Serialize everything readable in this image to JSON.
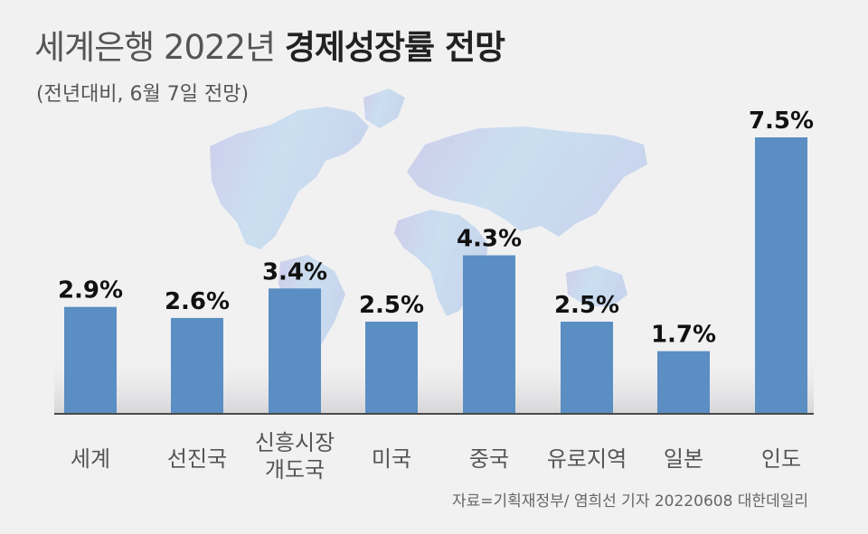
{
  "title": {
    "prefix": "세계은행 2022년",
    "emphasis": "경제성장률 전망"
  },
  "subtitle": "(전년대비, 6월 7일 전망)",
  "source": "자료=기획재정부/ 염희선 기자 20220608 대한데일리",
  "colors": {
    "bar": "#5b8ec2",
    "baseline": "#4a4a4a",
    "background": "#f1f1f2",
    "map": "#c9d6ec"
  },
  "chart_data": {
    "type": "bar",
    "categories": [
      [
        "세계"
      ],
      [
        "선진국"
      ],
      [
        "신흥시장",
        "개도국"
      ],
      [
        "미국"
      ],
      [
        "중국"
      ],
      [
        "유로지역"
      ],
      [
        "일본"
      ],
      [
        "인도"
      ]
    ],
    "values": [
      2.9,
      2.6,
      3.4,
      2.5,
      4.3,
      2.5,
      1.7,
      7.5
    ],
    "value_labels": [
      "2.9%",
      "2.6%",
      "3.4%",
      "2.5%",
      "4.3%",
      "2.5%",
      "1.7%",
      "7.5%"
    ],
    "ylim": [
      0,
      7.5
    ],
    "grid": false,
    "legend": "none"
  }
}
